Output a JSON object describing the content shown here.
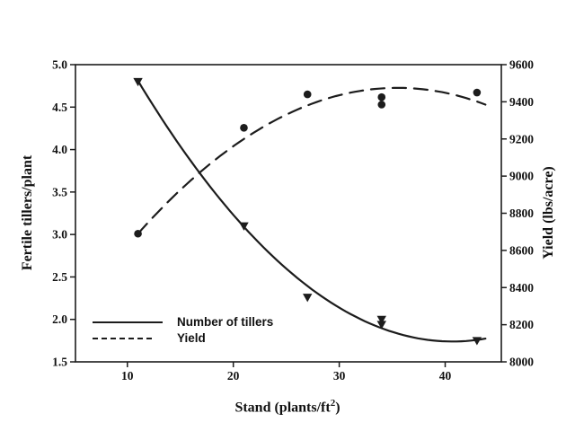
{
  "chart_data": {
    "type": "scatter",
    "title": "",
    "background": "#ffffff",
    "foreground": "#1c1c1c",
    "grid": false,
    "x_axis": {
      "label": "Stand (plants/ft2)",
      "label_base": "Stand (plants/ft",
      "label_sup": "2",
      "label_close": ")",
      "ticks": [
        10,
        20,
        30,
        40
      ],
      "range": [
        5.1,
        45.3
      ]
    },
    "y_left_axis": {
      "label": "Fertile tillers/plant",
      "ticks": [
        "5.0",
        "4.5",
        "4.0",
        "3.5",
        "3.0",
        "2.5",
        "2.0",
        "1.5"
      ],
      "range": [
        1.5,
        5.0
      ]
    },
    "y_right_axis": {
      "label": "Yield (lbs/acre)",
      "ticks": [
        9600,
        9400,
        9200,
        9000,
        8800,
        8600,
        8400,
        8200,
        8000
      ],
      "range": [
        8000,
        9600
      ]
    },
    "series": [
      {
        "name": "Number of tillers",
        "axis": "left",
        "marker": "triangle-down",
        "line_style": "solid",
        "points": [
          [
            11,
            4.8
          ],
          [
            21,
            3.1
          ],
          [
            27,
            2.26
          ],
          [
            34,
            2.0
          ],
          [
            34,
            1.94
          ],
          [
            43,
            1.75
          ]
        ],
        "fit_curve": {
          "type": "quadratic",
          "a": 0.00348,
          "h": 40.7,
          "k": 1.74,
          "x_start": 11,
          "x_end": 43.8
        }
      },
      {
        "name": "Yield",
        "axis": "right",
        "marker": "circle",
        "line_style": "dashed",
        "points": [
          [
            11,
            8690
          ],
          [
            21,
            9260
          ],
          [
            27,
            9440
          ],
          [
            34,
            9425
          ],
          [
            34,
            9385
          ],
          [
            43,
            9450
          ]
        ],
        "fit_curve": {
          "type": "quadratic",
          "a": -1.3078,
          "h": 35.5,
          "k": 9475,
          "x_start": 11,
          "x_end": 43.8
        }
      }
    ],
    "legend": {
      "position": "lower-left-inside",
      "items": [
        {
          "label": "Number of tillers",
          "line_style": "solid"
        },
        {
          "label": "Yield",
          "line_style": "dashed"
        }
      ]
    }
  }
}
